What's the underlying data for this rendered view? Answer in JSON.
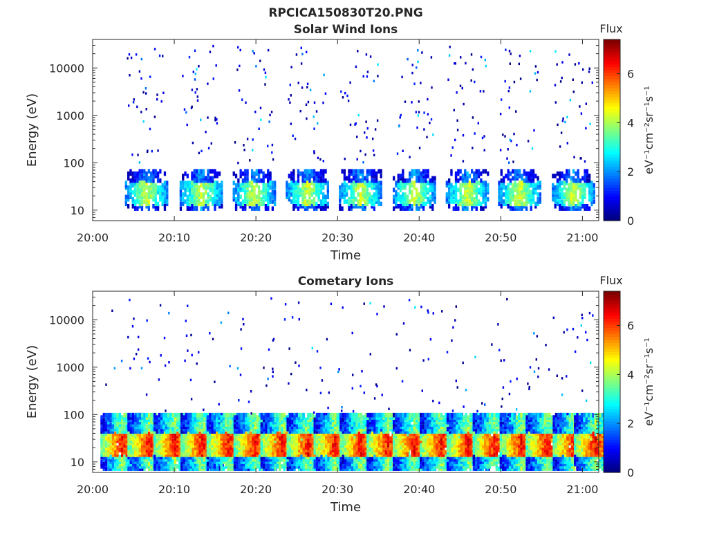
{
  "figure": {
    "title": "RPCICA150830T20.PNG"
  },
  "chart_data": [
    {
      "type": "heatmap",
      "title": "Solar Wind Ions",
      "xlabel": "Time",
      "ylabel": "Energy (eV)",
      "yscale": "log",
      "x_ticks": [
        "20:00",
        "20:10",
        "20:20",
        "20:30",
        "20:40",
        "20:50",
        "21:00"
      ],
      "x_tick_minutes": [
        0,
        10,
        20,
        30,
        40,
        50,
        60
      ],
      "xlim_minutes": [
        0,
        62
      ],
      "y_ticks": [
        "10",
        "100",
        "1000",
        "10000"
      ],
      "y_tick_values": [
        10,
        100,
        1000,
        10000
      ],
      "ylim": [
        6,
        40000
      ],
      "colorbar": {
        "label": "Flux",
        "units": "eV⁻¹cm⁻²sr⁻¹s⁻¹",
        "ticks": [
          "0",
          "2",
          "4",
          "6"
        ],
        "tick_values": [
          0,
          2,
          4,
          6
        ],
        "range": [
          0,
          7.4
        ]
      },
      "sweep_center_minutes": [
        6.5,
        13.2,
        19.7,
        26.2,
        32.7,
        39.3,
        45.8,
        52.2,
        58.8
      ],
      "description_of_pattern": "Periodic energy sweeps; peak flux ~4-5 near 20-40 eV, scattered low flux (0-2) up to ~30000 eV"
    },
    {
      "type": "heatmap",
      "title": "Cometary Ions",
      "xlabel": "Time",
      "ylabel": "Energy (eV)",
      "yscale": "log",
      "x_ticks": [
        "20:00",
        "20:10",
        "20:20",
        "20:30",
        "20:40",
        "20:50",
        "21:00"
      ],
      "x_tick_minutes": [
        0,
        10,
        20,
        30,
        40,
        50,
        60
      ],
      "xlim_minutes": [
        0,
        62
      ],
      "y_ticks": [
        "10",
        "100",
        "1000",
        "10000"
      ],
      "y_tick_values": [
        10,
        100,
        1000,
        10000
      ],
      "ylim": [
        6,
        40000
      ],
      "colorbar": {
        "label": "Flux",
        "units": "eV⁻¹cm⁻²sr⁻¹s⁻¹",
        "ticks": [
          "0",
          "2",
          "4",
          "6"
        ],
        "tick_values": [
          0,
          2,
          4,
          6
        ],
        "range": [
          0,
          7.4
        ]
      },
      "sweep_center_minutes": [
        3.5,
        6.8,
        10.0,
        13.3,
        16.5,
        19.8,
        23.1,
        26.3,
        29.6,
        32.8,
        36.1,
        39.3,
        42.6,
        45.9,
        49.1,
        52.4,
        55.6,
        58.9,
        61.5
      ],
      "description_of_pattern": "Frequent sweeps; strong flux ~6-7 near 15-40 eV, scattered low flux up to ~10000 eV"
    }
  ]
}
